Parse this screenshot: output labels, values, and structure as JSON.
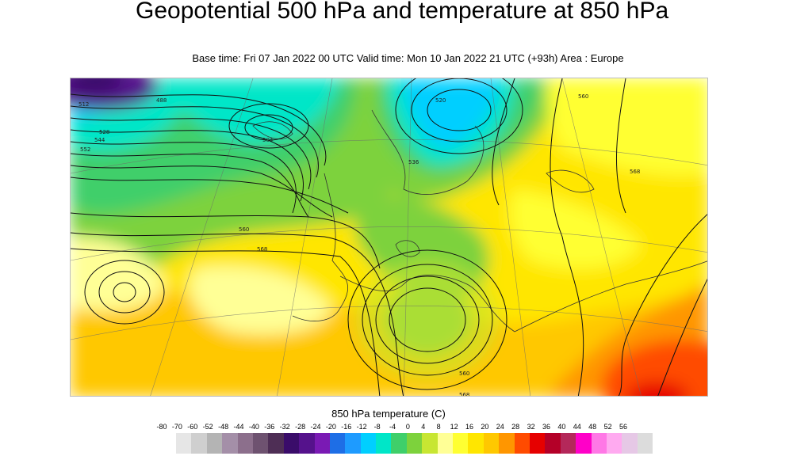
{
  "title": "Geopotential 500 hPa and temperature at 850 hPa",
  "subtitle": "Base time: Fri 07 Jan 2022 00 UTC Valid time: Mon 10 Jan 2022 21 UTC (+93h) Area : Europe",
  "contour_labels": [
    "488",
    "504",
    "512",
    "520",
    "528",
    "536",
    "544",
    "552",
    "560",
    "568"
  ],
  "legend": {
    "title": "850 hPa temperature (C)",
    "labels": [
      "-80",
      "-70",
      "-60",
      "-52",
      "-48",
      "-44",
      "-40",
      "-36",
      "-32",
      "-28",
      "-24",
      "-20",
      "-16",
      "-12",
      "-8",
      "-4",
      "0",
      "4",
      "8",
      "12",
      "16",
      "20",
      "24",
      "28",
      "32",
      "36",
      "40",
      "44",
      "48",
      "52",
      "56"
    ],
    "colors": [
      "#e6e6e6",
      "#cfcfcf",
      "#b4b4b4",
      "#a48fa8",
      "#8c6f8c",
      "#6e5270",
      "#4e2e55",
      "#3a0c6a",
      "#55128c",
      "#7a1ab4",
      "#1e6ee6",
      "#1e9bff",
      "#00cfff",
      "#00e6c8",
      "#3fcf6a",
      "#7dd23c",
      "#c8e632",
      "#ffff96",
      "#ffff32",
      "#ffe600",
      "#ffc800",
      "#ff9600",
      "#ff4b00",
      "#e60000",
      "#b40028",
      "#b4285a",
      "#ff00c8",
      "#ff78e6",
      "#ffaaf0",
      "#e6c8e6",
      "#dcdcdc"
    ]
  }
}
